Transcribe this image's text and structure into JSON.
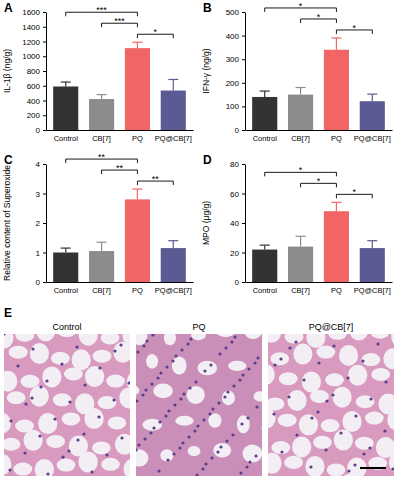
{
  "chart_data": [
    {
      "type": "bar",
      "title": "A",
      "y_label": "IL-1β (ng/g)",
      "categories": [
        "Control",
        "CB[7]",
        "PQ",
        "PQ@CB[7]"
      ],
      "values": [
        590,
        420,
        1110,
        535
      ],
      "errors": [
        60,
        60,
        80,
        150
      ],
      "colors": [
        "#333333",
        "#8c8c8c",
        "#f26565",
        "#5c5a92"
      ],
      "ylim": [
        0,
        1600
      ],
      "yticks": [
        0,
        200,
        400,
        600,
        800,
        1000,
        1200,
        1400,
        1600
      ],
      "annotations": [
        {
          "from": "Control",
          "to": "PQ",
          "text": "***"
        },
        {
          "from": "CB[7]",
          "to": "PQ",
          "text": "***"
        },
        {
          "from": "PQ",
          "to": "PQ@CB[7]",
          "text": "*"
        }
      ]
    },
    {
      "type": "bar",
      "title": "B",
      "y_label": "IFN-γ (ng/g)",
      "categories": [
        "Control",
        "CB[7]",
        "PQ",
        "PQ@CB[7]"
      ],
      "values": [
        140,
        150,
        340,
        122
      ],
      "errors": [
        25,
        30,
        50,
        30
      ],
      "colors": [
        "#333333",
        "#8c8c8c",
        "#f26565",
        "#5c5a92"
      ],
      "ylim": [
        0,
        500
      ],
      "yticks": [
        0,
        100,
        200,
        300,
        400,
        500
      ],
      "annotations": [
        {
          "from": "Control",
          "to": "PQ",
          "text": "*"
        },
        {
          "from": "CB[7]",
          "to": "PQ",
          "text": "*"
        },
        {
          "from": "PQ",
          "to": "PQ@CB[7]",
          "text": "*"
        }
      ]
    },
    {
      "type": "bar",
      "title": "C",
      "y_label": "Relative content of Superoxide",
      "categories": [
        "Control",
        "CB[7]",
        "PQ",
        "PQ@CB[7]"
      ],
      "values": [
        1.0,
        1.05,
        2.8,
        1.15
      ],
      "errors": [
        0.15,
        0.3,
        0.35,
        0.25
      ],
      "colors": [
        "#333333",
        "#8c8c8c",
        "#f26565",
        "#5c5a92"
      ],
      "ylim": [
        0,
        4
      ],
      "yticks": [
        0,
        1,
        2,
        3,
        4
      ],
      "annotations": [
        {
          "from": "Control",
          "to": "PQ",
          "text": "**"
        },
        {
          "from": "CB[7]",
          "to": "PQ",
          "text": "**"
        },
        {
          "from": "PQ",
          "to": "PQ@CB[7]",
          "text": "**"
        }
      ]
    },
    {
      "type": "bar",
      "title": "D",
      "y_label": "MPO (μg/g)",
      "categories": [
        "Control",
        "CB[7]",
        "PQ",
        "PQ@CB[7]"
      ],
      "values": [
        22,
        24,
        48,
        23
      ],
      "errors": [
        3,
        7,
        6,
        5
      ],
      "colors": [
        "#333333",
        "#8c8c8c",
        "#f26565",
        "#5c5a92"
      ],
      "ylim": [
        0,
        80
      ],
      "yticks": [
        0,
        20,
        40,
        60,
        80
      ],
      "annotations": [
        {
          "from": "Control",
          "to": "PQ",
          "text": "*"
        },
        {
          "from": "CB[7]",
          "to": "PQ",
          "text": "*"
        },
        {
          "from": "PQ",
          "to": "PQ@CB[7]",
          "text": "*"
        }
      ]
    }
  ],
  "image_panel": {
    "title": "E",
    "captions": [
      "Control",
      "PQ",
      "PQ@CB[7]"
    ]
  }
}
